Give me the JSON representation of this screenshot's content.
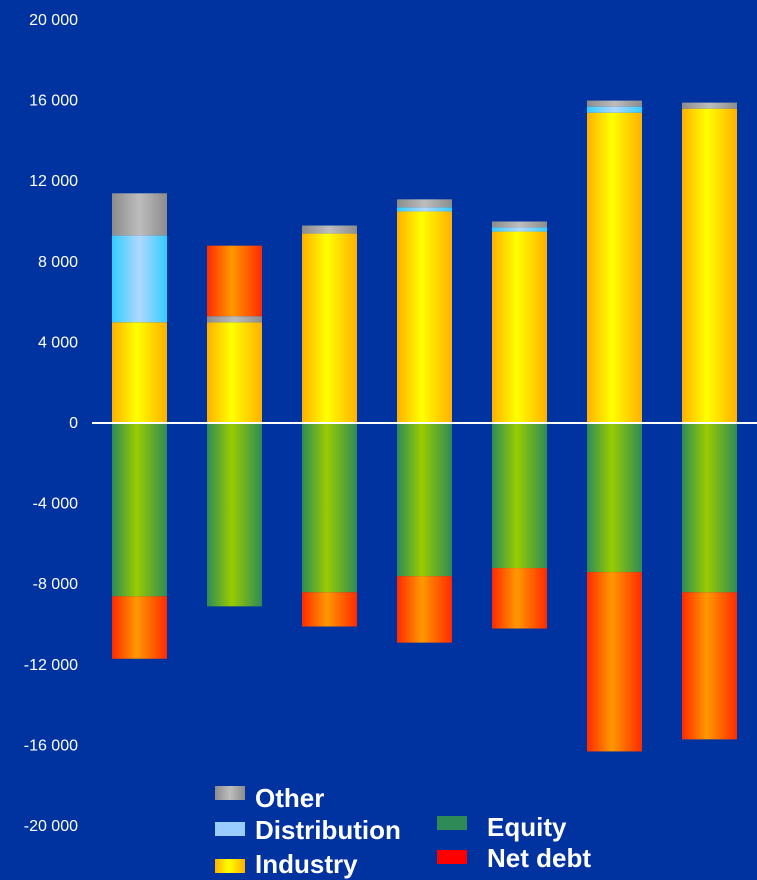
{
  "chart_data": {
    "type": "bar",
    "stacked": true,
    "categories": [
      "",
      "",
      "",
      "",
      "",
      "",
      ""
    ],
    "ylim": [
      -20000,
      20000
    ],
    "yticks": [
      20000,
      16000,
      12000,
      8000,
      4000,
      0,
      -4000,
      -8000,
      -12000,
      -16000,
      -20000
    ],
    "ytick_labels": [
      "20 000",
      "16 000",
      "12 000",
      "8 000",
      "4 000",
      "0",
      "-4 000",
      "-8 000",
      "-12 000",
      "-16 000",
      "-20 000"
    ],
    "grid": false,
    "legend_position": "bottom-center",
    "series": [
      {
        "name": "Industry",
        "key": "industry",
        "color": "#FFD700",
        "values": [
          5000,
          5000,
          9400,
          10500,
          9500,
          15400,
          15600
        ]
      },
      {
        "name": "Distribution",
        "key": "distribution",
        "color": "#99CCFF",
        "values": [
          4300,
          0,
          0,
          200,
          200,
          300,
          0
        ]
      },
      {
        "name": "Other",
        "key": "other",
        "color": "#A0A0A0",
        "values": [
          2100,
          300,
          400,
          400,
          300,
          300,
          300
        ]
      },
      {
        "name": "Net debt (positive)",
        "key": "net_debt_pos",
        "color": "#FF0000",
        "values": [
          0,
          3500,
          0,
          0,
          0,
          0,
          0
        ]
      },
      {
        "name": "Equity",
        "key": "equity",
        "color": "#2E8B57",
        "values": [
          -8600,
          -9100,
          -8400,
          -7600,
          -7200,
          -7400,
          -8400
        ]
      },
      {
        "name": "Net debt",
        "key": "net_debt",
        "color": "#FF0000",
        "values": [
          -3100,
          0,
          -1700,
          -3300,
          -3000,
          -8900,
          -7300
        ]
      }
    ],
    "legend": [
      {
        "label": "Other",
        "color": "#A0A0A0"
      },
      {
        "label": "Distribution",
        "color": "#99CCFF"
      },
      {
        "label": "Industry",
        "color": "#FFD700"
      },
      {
        "label": "Equity",
        "color": "#2E8B57"
      },
      {
        "label": "Net debt",
        "color": "#FF0000"
      }
    ]
  }
}
